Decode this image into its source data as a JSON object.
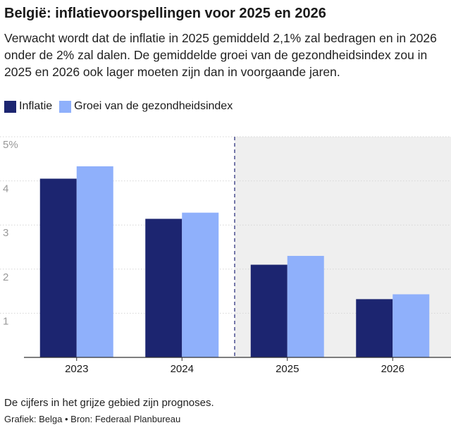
{
  "title": "België: inflatievoorspellingen voor 2025 en 2026",
  "subtitle": "Verwacht wordt dat de inflatie in 2025 gemiddeld 2,1% zal bedragen en in 2026 onder de 2% zal dalen. De gemiddelde groei van de gezondheidsindex zou in 2025 en 2026 ook lager moeten zijn dan in voorgaande jaren.",
  "note": "De cijfers in het grijze gebied zijn prognoses.",
  "credit": "Grafiek: Belga • Bron: Federaal Planbureau",
  "colors": {
    "inflatie": "#1c2570",
    "gezondheidsindex": "#8fb0fb",
    "forecast_bg": "#efefef",
    "divider": "#4a4f8f"
  },
  "chart_data": {
    "type": "bar",
    "categories": [
      "2023",
      "2024",
      "2025",
      "2026"
    ],
    "series": [
      {
        "name": "Inflatie",
        "values": [
          4.05,
          3.14,
          2.1,
          1.32
        ]
      },
      {
        "name": "Groei van de gezondheidsindex",
        "values": [
          4.33,
          3.28,
          2.3,
          1.43
        ]
      }
    ],
    "ylim": [
      0,
      5
    ],
    "yticks": [
      {
        "value": 1,
        "label": "1"
      },
      {
        "value": 2,
        "label": "2"
      },
      {
        "value": 3,
        "label": "3"
      },
      {
        "value": 4,
        "label": "4"
      },
      {
        "value": 5,
        "label": "5%"
      }
    ],
    "forecast_from": "2025",
    "title": "",
    "xlabel": "",
    "ylabel": ""
  }
}
